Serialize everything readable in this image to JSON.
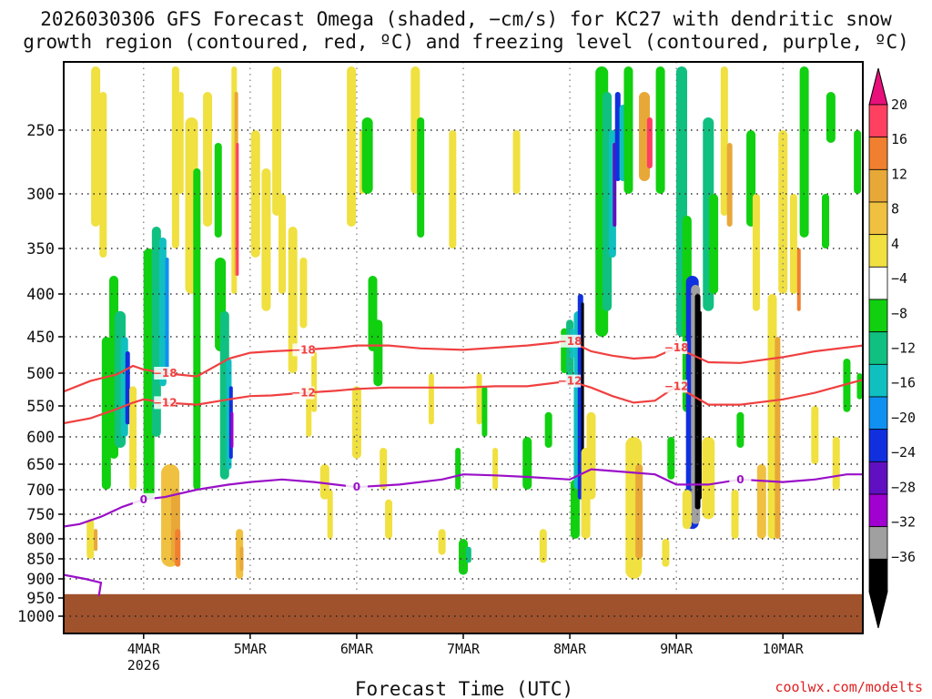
{
  "chart_data": {
    "type": "heatmap",
    "title_line1": "2026030306 GFS Forecast Omega (shaded, −cm/s) for KC27 with dendritic snow",
    "title_line2": "growth region (contoured, red, ºC) and freezing level (contoured, purple, ºC)",
    "xlabel": "Forecast Time (UTC)",
    "ylabel": "",
    "credit": "coolwx.com/modelts",
    "xlim": [
      3.25,
      10.75
    ],
    "ylim": [
      1050,
      200
    ],
    "x_ticks": [
      {
        "label": "4MAR",
        "sub": "2026",
        "value": 4
      },
      {
        "label": "5MAR",
        "sub": "",
        "value": 5
      },
      {
        "label": "6MAR",
        "sub": "",
        "value": 6
      },
      {
        "label": "7MAR",
        "sub": "",
        "value": 7
      },
      {
        "label": "8MAR",
        "sub": "",
        "value": 8
      },
      {
        "label": "9MAR",
        "sub": "",
        "value": 9
      },
      {
        "label": "10MAR",
        "sub": "",
        "value": 10
      }
    ],
    "y_ticks": [
      250,
      300,
      350,
      400,
      450,
      500,
      550,
      600,
      650,
      700,
      750,
      800,
      850,
      900,
      950,
      1000
    ],
    "colorbar": {
      "labels": [
        "20",
        "16",
        "12",
        "8",
        "4",
        "−4",
        "−8",
        "−12",
        "−16",
        "−20",
        "−24",
        "−28",
        "−32",
        "−36"
      ],
      "colors": [
        "#ff4060",
        "#f08030",
        "#e8a838",
        "#f0c040",
        "#f0e040",
        "#ffffff",
        "#10d010",
        "#10c080",
        "#10c0c0",
        "#1090f0",
        "#1030e0",
        "#6010c0",
        "#a000d0",
        "#a0a0a0",
        "#000000"
      ],
      "top_color": "#e8107a",
      "bottom_color": "#000000"
    },
    "ground_level_hpa": 940,
    "ground_color": "#a0522d",
    "series": [
      {
        "name": "-18",
        "color": "#f04040",
        "label": "−18",
        "x": [
          3.25,
          3.5,
          3.75,
          3.9,
          4.0,
          4.2,
          4.5,
          4.8,
          5.0,
          5.2,
          5.5,
          5.8,
          6.0,
          6.3,
          6.6,
          7.0,
          7.3,
          7.6,
          8.0,
          8.2,
          8.4,
          8.6,
          8.8,
          9.0,
          9.3,
          9.6,
          10.0,
          10.3,
          10.75
        ],
        "values": [
          528,
          512,
          502,
          490,
          495,
          500,
          505,
          480,
          472,
          470,
          468,
          465,
          462,
          462,
          466,
          468,
          465,
          462,
          456,
          470,
          476,
          480,
          478,
          465,
          485,
          486,
          478,
          470,
          462
        ]
      },
      {
        "name": "-12",
        "color": "#f04040",
        "label": "−12",
        "x": [
          3.25,
          3.5,
          3.75,
          3.9,
          4.0,
          4.2,
          4.5,
          4.8,
          5.0,
          5.2,
          5.5,
          5.8,
          6.0,
          6.3,
          6.6,
          7.0,
          7.3,
          7.6,
          8.0,
          8.2,
          8.4,
          8.6,
          8.8,
          9.0,
          9.3,
          9.6,
          10.0,
          10.3,
          10.75
        ],
        "values": [
          578,
          570,
          555,
          545,
          540,
          545,
          548,
          540,
          535,
          534,
          530,
          527,
          524,
          522,
          522,
          522,
          520,
          520,
          512,
          522,
          535,
          545,
          542,
          520,
          548,
          548,
          540,
          530,
          510
        ]
      },
      {
        "name": "0",
        "color": "#9a10c8",
        "label": "0",
        "x": [
          3.25,
          3.4,
          3.6,
          3.8,
          4.0,
          4.2,
          4.5,
          4.8,
          5.0,
          5.3,
          5.6,
          6.0,
          6.4,
          6.8,
          7.0,
          7.3,
          7.6,
          8.0,
          8.2,
          8.5,
          8.8,
          9.0,
          9.3,
          9.6,
          10.0,
          10.3,
          10.6,
          10.75
        ],
        "values": [
          775,
          770,
          755,
          735,
          720,
          715,
          700,
          690,
          685,
          680,
          685,
          695,
          690,
          680,
          670,
          672,
          675,
          680,
          660,
          665,
          670,
          690,
          690,
          680,
          685,
          680,
          670,
          670
        ]
      }
    ]
  }
}
